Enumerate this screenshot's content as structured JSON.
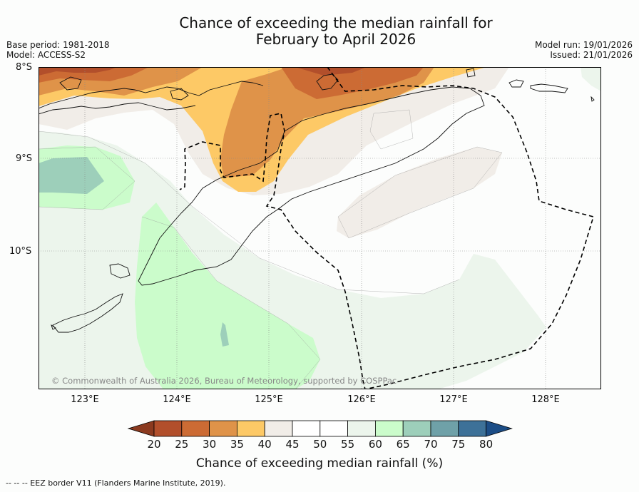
{
  "title": {
    "line1": "Chance of exceeding the median rainfall for",
    "line2": "February to April 2026"
  },
  "meta_left": {
    "base_period": "Base period: 1981-2018",
    "model": "Model: ACCESS-S2"
  },
  "meta_right": {
    "model_run": "Model run: 19/01/2026",
    "issued": "Issued: 21/01/2026"
  },
  "map": {
    "latitude_labels": [
      "8°S",
      "9°S",
      "10°S"
    ],
    "longitude_labels": [
      "123°E",
      "124°E",
      "125°E",
      "126°E",
      "127°E",
      "128°E"
    ],
    "copyright": "© Commonwealth of Australia 2026, Bureau of Meteorology, supported by COSPPac",
    "colors": {
      "background": "#fcfdfc",
      "c20": "#8b3a1f",
      "c25": "#b24f2b",
      "c30": "#cc6b34",
      "c35": "#df9349",
      "c40": "#fdc966",
      "c45": "#f1ede8",
      "c50": "#fcfdfc",
      "c55": "#fcfdfc",
      "c60": "#ecf5ec",
      "c65": "#cbfccb",
      "c70": "#9dcfba",
      "c75": "#6fa1a8",
      "c80": "#3d7198"
    }
  },
  "colorbar": {
    "tick_labels": [
      "20",
      "25",
      "30",
      "35",
      "40",
      "45",
      "50",
      "55",
      "60",
      "65",
      "70",
      "75",
      "80"
    ],
    "segment_colors": [
      "#b24f2b",
      "#cc6b34",
      "#df9349",
      "#fdc966",
      "#f1ede8",
      "#ffffff",
      "#ffffff",
      "#ecf5ec",
      "#cbfccb",
      "#9dcfba",
      "#6fa1a8",
      "#3d7198"
    ],
    "under_color": "#8b3a1f",
    "over_color": "#1c4d86",
    "title": "Chance of exceeding median rainfall (%)"
  },
  "footer": {
    "legend": "-- --  -- EEZ border V11 (Flanders Marine Institute, 2019)."
  }
}
